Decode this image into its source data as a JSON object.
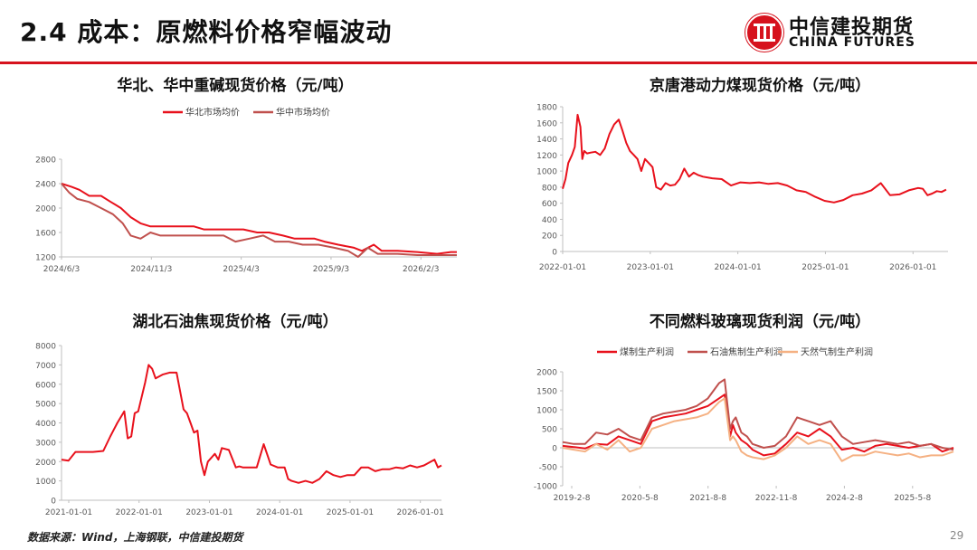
{
  "header": {
    "title": "2.4 成本：原燃料价格窄幅波动",
    "logo_cn": "中信建投期货",
    "logo_en": "CHINA FUTURES"
  },
  "footer": {
    "source": "数据来源：Wind，上海钢联，中信建投期货",
    "page": "29"
  },
  "colors": {
    "accent": "#d6121d",
    "series_red": "#e8111c",
    "series_maroon": "#c0504d",
    "series_peach": "#f5b183"
  },
  "chart_data": [
    {
      "id": "chart1",
      "type": "line",
      "title": "华北、华中重碱现货价格（元/吨）",
      "legend_position": "top",
      "ylim": [
        1200,
        2800
      ],
      "yticks": [
        1200,
        1600,
        2000,
        2400,
        2800
      ],
      "xticks": [
        "2024/6/3",
        "2024/11/3",
        "2025/4/3",
        "2025/9/3",
        "2026/2/3"
      ],
      "x_range": [
        0,
        2
      ],
      "series": [
        {
          "name": "华北市场均价",
          "color": "#e8111c",
          "x": [
            0,
            0.05,
            0.09,
            0.14,
            0.2,
            0.25,
            0.3,
            0.35,
            0.4,
            0.45,
            0.5,
            0.55,
            0.6,
            0.67,
            0.72,
            0.78,
            0.85,
            0.92,
            0.99,
            1.05,
            1.12,
            1.18,
            1.24,
            1.28,
            1.33,
            1.4,
            1.48,
            1.52,
            1.58,
            1.62,
            1.7,
            1.8,
            1.9,
            1.97,
            2.0
          ],
          "y": [
            2400,
            2350,
            2300,
            2200,
            2200,
            2100,
            2000,
            1850,
            1750,
            1700,
            1700,
            1700,
            1700,
            1700,
            1650,
            1650,
            1650,
            1650,
            1600,
            1600,
            1550,
            1500,
            1500,
            1500,
            1450,
            1400,
            1350,
            1300,
            1400,
            1300,
            1300,
            1280,
            1250,
            1280,
            1280
          ]
        },
        {
          "name": "华中市场均价",
          "color": "#c0504d",
          "x": [
            0,
            0.04,
            0.08,
            0.14,
            0.2,
            0.26,
            0.31,
            0.35,
            0.4,
            0.45,
            0.5,
            0.55,
            0.65,
            0.75,
            0.82,
            0.88,
            0.95,
            1.02,
            1.08,
            1.15,
            1.22,
            1.3,
            1.38,
            1.45,
            1.5,
            1.55,
            1.6,
            1.7,
            1.8,
            1.9,
            2.0
          ],
          "y": [
            2400,
            2250,
            2150,
            2100,
            2000,
            1900,
            1750,
            1550,
            1500,
            1600,
            1550,
            1550,
            1550,
            1550,
            1550,
            1450,
            1500,
            1550,
            1450,
            1450,
            1400,
            1400,
            1350,
            1300,
            1200,
            1350,
            1250,
            1250,
            1230,
            1230,
            1230
          ]
        }
      ]
    },
    {
      "id": "chart2",
      "type": "line",
      "title": "京唐港动力煤现货价格（元/吨）",
      "ylim": [
        0,
        1800
      ],
      "yticks": [
        0,
        200,
        400,
        600,
        800,
        1000,
        1200,
        1400,
        1600,
        1800
      ],
      "xticks": [
        "2022-01-01",
        "2023-01-01",
        "2024-01-01",
        "2025-01-01",
        "2026-01-01"
      ],
      "x_range": [
        0,
        4.12
      ],
      "series": [
        {
          "name": "",
          "color": "#e8111c",
          "x": [
            0,
            0.03,
            0.06,
            0.1,
            0.13,
            0.16,
            0.19,
            0.21,
            0.23,
            0.26,
            0.3,
            0.35,
            0.4,
            0.45,
            0.5,
            0.55,
            0.6,
            0.64,
            0.68,
            0.72,
            0.76,
            0.8,
            0.84,
            0.88,
            0.92,
            0.96,
            1.0,
            1.05,
            1.1,
            1.15,
            1.2,
            1.25,
            1.3,
            1.35,
            1.4,
            1.45,
            1.5,
            1.6,
            1.7,
            1.8,
            1.9,
            2.0,
            2.1,
            2.2,
            2.3,
            2.4,
            2.5,
            2.6,
            2.7,
            2.8,
            2.9,
            3.0,
            3.1,
            3.2,
            3.3,
            3.4,
            3.5,
            3.6,
            3.7,
            3.8,
            3.85,
            3.9,
            3.95,
            4.0,
            4.05,
            4.1
          ],
          "y": [
            780,
            900,
            1100,
            1200,
            1300,
            1700,
            1550,
            1150,
            1250,
            1220,
            1230,
            1240,
            1200,
            1280,
            1460,
            1580,
            1640,
            1500,
            1350,
            1250,
            1200,
            1150,
            1000,
            1150,
            1100,
            1050,
            800,
            770,
            850,
            820,
            830,
            900,
            1030,
            930,
            980,
            950,
            930,
            910,
            900,
            820,
            860,
            850,
            860,
            840,
            850,
            820,
            760,
            740,
            680,
            630,
            610,
            640,
            700,
            720,
            760,
            850,
            700,
            710,
            760,
            790,
            780,
            700,
            720,
            750,
            740,
            770
          ]
        }
      ]
    },
    {
      "id": "chart3",
      "type": "line",
      "title": "湖北石油焦现货价格（元/吨）",
      "ylim": [
        0,
        8000
      ],
      "yticks": [
        0,
        1000,
        2000,
        3000,
        4000,
        5000,
        6000,
        7000,
        8000
      ],
      "xticks": [
        "2021-01-01",
        "2022-01-01",
        "2023-01-01",
        "2024-01-01",
        "2025-01-01",
        "2026-01-01"
      ],
      "x_range": [
        0,
        5.45
      ],
      "series": [
        {
          "name": "",
          "color": "#e8111c",
          "x": [
            0,
            0.1,
            0.2,
            0.3,
            0.45,
            0.6,
            0.7,
            0.8,
            0.9,
            0.95,
            1.0,
            1.05,
            1.1,
            1.2,
            1.25,
            1.3,
            1.35,
            1.45,
            1.55,
            1.65,
            1.75,
            1.8,
            1.85,
            1.9,
            1.95,
            2.0,
            2.05,
            2.1,
            2.2,
            2.25,
            2.3,
            2.4,
            2.5,
            2.55,
            2.6,
            2.7,
            2.8,
            2.9,
            3.0,
            3.1,
            3.2,
            3.25,
            3.3,
            3.4,
            3.5,
            3.6,
            3.7,
            3.8,
            3.9,
            4.0,
            4.1,
            4.2,
            4.3,
            4.4,
            4.5,
            4.6,
            4.7,
            4.8,
            4.9,
            5.0,
            5.1,
            5.2,
            5.3,
            5.35,
            5.4,
            5.45
          ],
          "y": [
            2100,
            2050,
            2500,
            2500,
            2500,
            2550,
            3300,
            4000,
            4600,
            3200,
            3300,
            4500,
            4600,
            6100,
            7000,
            6800,
            6300,
            6500,
            6600,
            6600,
            4700,
            4500,
            4000,
            3500,
            3600,
            2000,
            1300,
            2000,
            2400,
            2100,
            2700,
            2600,
            1700,
            1750,
            1700,
            1700,
            1700,
            2900,
            1850,
            1700,
            1700,
            1100,
            1000,
            900,
            1000,
            900,
            1100,
            1500,
            1300,
            1200,
            1300,
            1300,
            1700,
            1700,
            1500,
            1600,
            1600,
            1700,
            1650,
            1800,
            1700,
            1800,
            2000,
            2100,
            1700,
            1800
          ]
        }
      ]
    },
    {
      "id": "chart4",
      "type": "line",
      "title": "不同燃料玻璃现货利润（元/吨）",
      "legend_position": "top",
      "ylim": [
        -1000,
        2000
      ],
      "yticks": [
        -1000,
        -500,
        0,
        500,
        1000,
        1500,
        2000
      ],
      "xticks": [
        "2019-2-8",
        "2020-5-8",
        "2021-8-8",
        "2022-11-8",
        "2024-2-8",
        "2025-5-8"
      ],
      "x_range": [
        0,
        7.0
      ],
      "series": [
        {
          "name": "煤制生产利润",
          "color": "#e8111c",
          "x": [
            0,
            0.2,
            0.4,
            0.6,
            0.8,
            1.0,
            1.2,
            1.4,
            1.6,
            1.8,
            2.0,
            2.2,
            2.4,
            2.6,
            2.8,
            2.9,
            3.0,
            3.05,
            3.1,
            3.2,
            3.3,
            3.4,
            3.6,
            3.8,
            4.0,
            4.2,
            4.4,
            4.6,
            4.8,
            5.0,
            5.2,
            5.4,
            5.6,
            5.8,
            6.0,
            6.2,
            6.4,
            6.6,
            6.8,
            7.0
          ],
          "y": [
            50,
            20,
            -20,
            100,
            80,
            300,
            200,
            100,
            700,
            800,
            850,
            900,
            1000,
            1100,
            1300,
            1400,
            300,
            600,
            400,
            200,
            100,
            -50,
            -200,
            -150,
            100,
            400,
            300,
            500,
            300,
            -50,
            0,
            -100,
            50,
            100,
            50,
            0,
            50,
            100,
            -100,
            0
          ]
        },
        {
          "name": "石油焦制生产利润",
          "color": "#c0504d",
          "x": [
            0,
            0.2,
            0.4,
            0.6,
            0.8,
            1.0,
            1.2,
            1.4,
            1.6,
            1.8,
            2.0,
            2.2,
            2.4,
            2.6,
            2.8,
            2.9,
            3.0,
            3.05,
            3.1,
            3.2,
            3.3,
            3.4,
            3.6,
            3.8,
            4.0,
            4.2,
            4.4,
            4.6,
            4.8,
            5.0,
            5.2,
            5.4,
            5.6,
            5.8,
            6.0,
            6.2,
            6.4,
            6.6,
            6.8,
            7.0
          ],
          "y": [
            150,
            100,
            100,
            400,
            350,
            500,
            300,
            200,
            800,
            900,
            950,
            1000,
            1100,
            1300,
            1700,
            1800,
            500,
            700,
            800,
            400,
            300,
            100,
            0,
            50,
            300,
            800,
            700,
            600,
            700,
            300,
            100,
            150,
            200,
            150,
            100,
            150,
            50,
            100,
            0,
            -50
          ]
        },
        {
          "name": "天然气制生产利润",
          "color": "#f5b183",
          "x": [
            0,
            0.2,
            0.4,
            0.6,
            0.8,
            1.0,
            1.2,
            1.4,
            1.6,
            1.8,
            2.0,
            2.2,
            2.4,
            2.6,
            2.8,
            2.9,
            3.0,
            3.05,
            3.1,
            3.2,
            3.3,
            3.4,
            3.6,
            3.8,
            4.0,
            4.2,
            4.4,
            4.6,
            4.8,
            5.0,
            5.2,
            5.4,
            5.6,
            5.8,
            6.0,
            6.2,
            6.4,
            6.6,
            6.8,
            7.0
          ],
          "y": [
            0,
            -50,
            -100,
            100,
            -50,
            200,
            -100,
            0,
            500,
            600,
            700,
            750,
            800,
            900,
            1200,
            1300,
            200,
            300,
            200,
            -100,
            -200,
            -250,
            -300,
            -200,
            0,
            300,
            100,
            200,
            100,
            -350,
            -200,
            -200,
            -100,
            -150,
            -200,
            -150,
            -250,
            -200,
            -200,
            -100
          ]
        }
      ]
    }
  ]
}
